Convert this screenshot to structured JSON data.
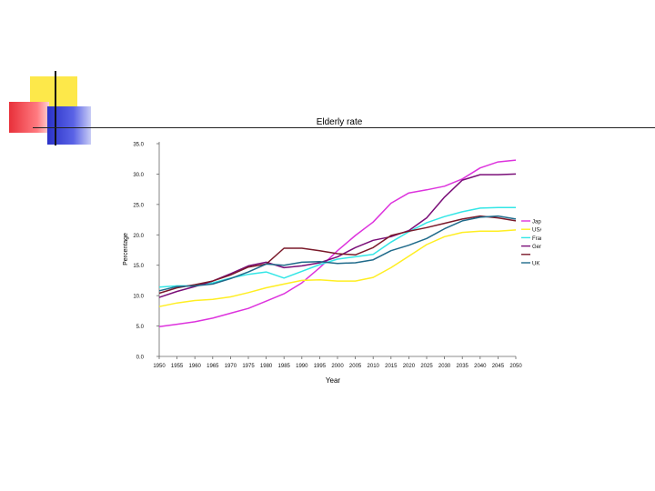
{
  "slide": {
    "accent_colors": {
      "yellow": "#fde84a",
      "red": "#e8303a",
      "blue": "#2a32c8",
      "rule": "#222222"
    }
  },
  "chart_data": {
    "type": "line",
    "title": "Elderly rate",
    "xlabel": "Year",
    "ylabel": "Percentage",
    "ylim": [
      0,
      35
    ],
    "yticks": [
      "0.0",
      "5.0",
      "10.0",
      "15.0",
      "20.0",
      "25.0",
      "30.0",
      "35.0"
    ],
    "x": [
      1950,
      1955,
      1960,
      1965,
      1970,
      1975,
      1980,
      1985,
      1990,
      1995,
      2000,
      2005,
      2010,
      2015,
      2020,
      2025,
      2030,
      2035,
      2040,
      2045,
      2050
    ],
    "grid": false,
    "legend_position": "right",
    "series": [
      {
        "name": "Japan",
        "color": "#dd33dd",
        "values": [
          4.9,
          5.3,
          5.7,
          6.3,
          7.1,
          7.9,
          9.1,
          10.3,
          12.1,
          14.6,
          17.4,
          19.9,
          22.1,
          25.2,
          26.9,
          27.4,
          28.0,
          29.2,
          31.0,
          32.0,
          32.3
        ]
      },
      {
        "name": "USA",
        "color": "#ffee22",
        "values": [
          8.2,
          8.8,
          9.2,
          9.4,
          9.8,
          10.5,
          11.3,
          11.9,
          12.5,
          12.6,
          12.4,
          12.4,
          13.0,
          14.6,
          16.5,
          18.4,
          19.7,
          20.4,
          20.6,
          20.6,
          20.8
        ]
      },
      {
        "name": "France",
        "color": "#33e6e6",
        "values": [
          11.4,
          11.6,
          11.6,
          12.1,
          12.9,
          13.5,
          13.9,
          12.9,
          14.0,
          15.1,
          16.0,
          16.4,
          16.8,
          18.8,
          20.5,
          22.0,
          23.0,
          23.8,
          24.4,
          24.5,
          24.5
        ]
      },
      {
        "name": "Germany",
        "color": "#7a0e78",
        "values": [
          9.7,
          10.7,
          11.5,
          12.4,
          13.6,
          14.9,
          15.5,
          14.6,
          14.9,
          15.4,
          16.4,
          17.9,
          19.1,
          19.7,
          20.7,
          22.8,
          26.2,
          29.0,
          29.9,
          29.9,
          30.0
        ]
      },
      {
        "name": "",
        "color": "#7a1a2a",
        "values": [
          10.4,
          11.3,
          11.8,
          12.4,
          13.4,
          14.7,
          15.2,
          17.8,
          17.8,
          17.4,
          16.9,
          16.7,
          17.9,
          19.9,
          20.6,
          21.2,
          21.9,
          22.6,
          23.1,
          22.8,
          22.3
        ]
      },
      {
        "name": "UK",
        "color": "#1f6a8a",
        "values": [
          10.8,
          11.5,
          11.6,
          11.9,
          12.8,
          13.9,
          15.2,
          15.0,
          15.5,
          15.6,
          15.3,
          15.4,
          15.9,
          17.4,
          18.3,
          19.4,
          21.0,
          22.3,
          22.9,
          23.1,
          22.6
        ]
      }
    ]
  }
}
